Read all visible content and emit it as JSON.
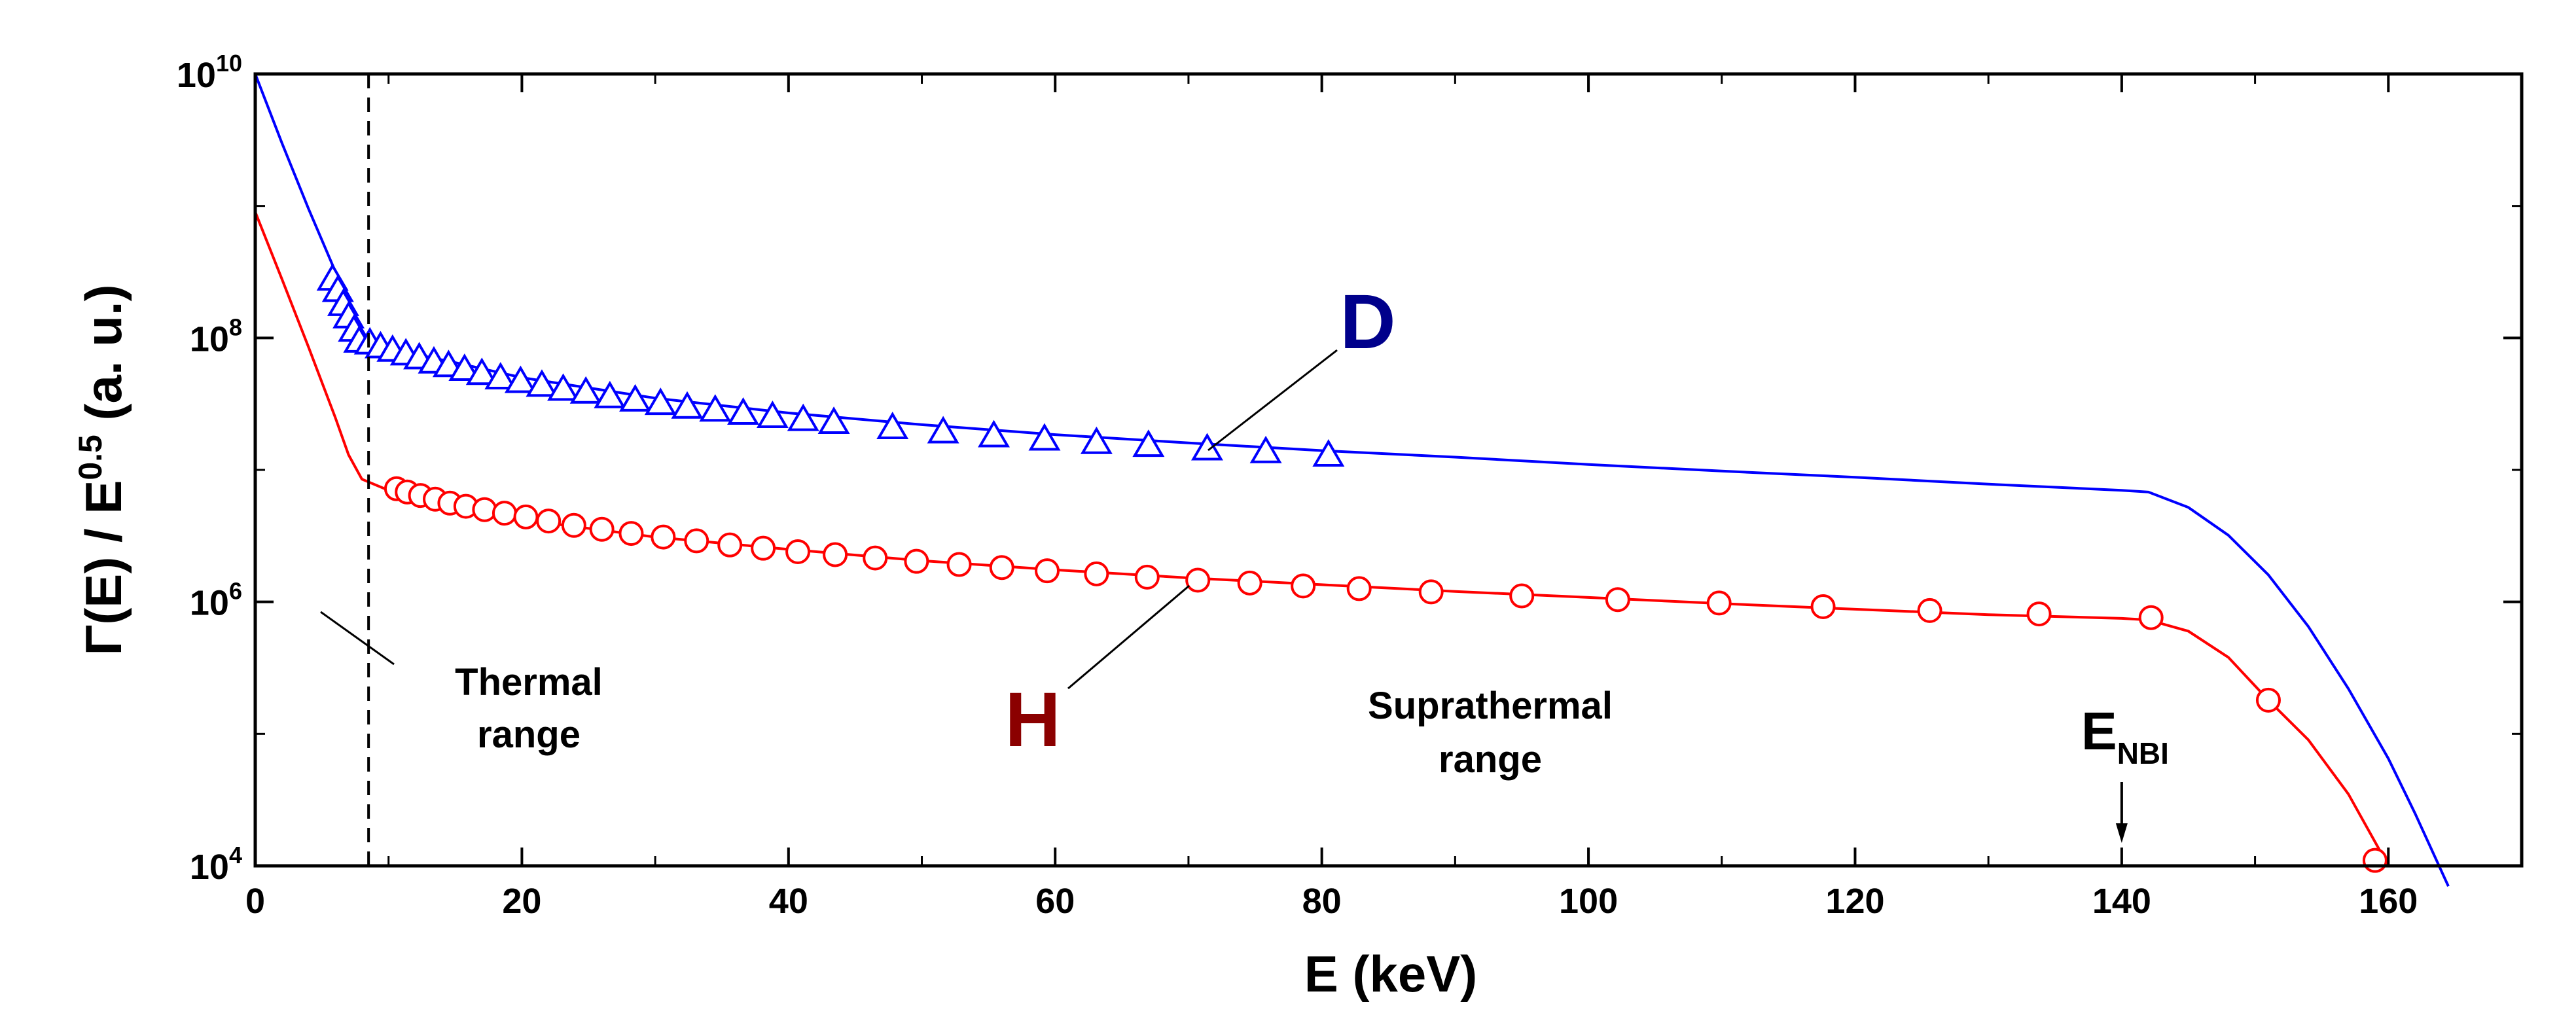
{
  "chart_data": {
    "type": "line",
    "xlabel": "E (keV)",
    "ylabel": {
      "main": "Γ(E) / E",
      "sup": "0.5",
      "tail": " (a. u.)"
    },
    "xlim": [
      0,
      170
    ],
    "ylim": [
      10000,
      10000000000
    ],
    "yscale": "log",
    "grid": false,
    "x_ticks": [
      {
        "value": 0,
        "label": "0"
      },
      {
        "value": 20,
        "label": "20"
      },
      {
        "value": 40,
        "label": "40"
      },
      {
        "value": 60,
        "label": "60"
      },
      {
        "value": 80,
        "label": "80"
      },
      {
        "value": 100,
        "label": "100"
      },
      {
        "value": 120,
        "label": "120"
      },
      {
        "value": 140,
        "label": "140"
      },
      {
        "value": 160,
        "label": "160"
      }
    ],
    "y_ticks": [
      {
        "value": 10000,
        "base": "10",
        "exp": "4"
      },
      {
        "value": 1000000,
        "base": "10",
        "exp": "6"
      },
      {
        "value": 100000000,
        "base": "10",
        "exp": "8"
      },
      {
        "value": 10000000000,
        "base": "10",
        "exp": "10"
      }
    ],
    "series": [
      {
        "name": "D",
        "color": "#0000ff",
        "marker": "triangle",
        "line": [
          [
            0,
            10000000000.0
          ],
          [
            2,
            3000000000.0
          ],
          [
            4,
            950000000.0
          ],
          [
            6,
            320000000.0
          ],
          [
            7,
            170000000.0
          ],
          [
            8.5,
            95000000.0
          ],
          [
            10,
            83000000.0
          ],
          [
            15,
            65000000.0
          ],
          [
            20,
            50000000.0
          ],
          [
            30,
            35000000.0
          ],
          [
            40,
            27000000.0
          ],
          [
            50,
            22000000.0
          ],
          [
            60,
            18500000.0
          ],
          [
            70,
            16000000.0
          ],
          [
            80,
            14000000.0
          ],
          [
            90,
            12500000.0
          ],
          [
            100,
            11000000.0
          ],
          [
            110,
            9800000.0
          ],
          [
            120,
            8800000.0
          ],
          [
            130,
            7800000.0
          ],
          [
            140,
            7000000.0
          ],
          [
            142,
            6800000.0
          ],
          [
            145,
            5200000.0
          ],
          [
            148,
            3200000.0
          ],
          [
            151,
            1600000.0
          ],
          [
            154,
            650000.0
          ],
          [
            157,
            220000.0
          ],
          [
            160,
            65000.0
          ],
          [
            162,
            25000.0
          ],
          [
            164.5,
            7000.0
          ]
        ],
        "points": [
          [
            5.8,
            280000000.0
          ],
          [
            6.2,
            230000000.0
          ],
          [
            6.6,
            180000000.0
          ],
          [
            7.0,
            145000000.0
          ],
          [
            7.4,
            115000000.0
          ],
          [
            7.8,
            95000000.0
          ],
          [
            8.6,
            92000000.0
          ],
          [
            9.4,
            86000000.0
          ],
          [
            10.3,
            81000000.0
          ],
          [
            11.3,
            76000000.0
          ],
          [
            12.3,
            71000000.0
          ],
          [
            13.4,
            66000000.0
          ],
          [
            14.5,
            62000000.0
          ],
          [
            15.7,
            58000000.0
          ],
          [
            17.0,
            54000000.0
          ],
          [
            18.4,
            50000000.0
          ],
          [
            19.9,
            47000000.0
          ],
          [
            21.5,
            44000000.0
          ],
          [
            23.1,
            41000000.0
          ],
          [
            24.8,
            39000000.0
          ],
          [
            26.6,
            36000000.0
          ],
          [
            28.5,
            34000000.0
          ],
          [
            30.4,
            32000000.0
          ],
          [
            32.4,
            30000000.0
          ],
          [
            34.5,
            28500000.0
          ],
          [
            36.6,
            27000000.0
          ],
          [
            38.8,
            25500000.0
          ],
          [
            41.1,
            24200000.0
          ],
          [
            43.4,
            23000000.0
          ],
          [
            47.8,
            21000000.0
          ],
          [
            51.6,
            19500000.0
          ],
          [
            55.4,
            18200000.0
          ],
          [
            59.2,
            17200000.0
          ],
          [
            63.1,
            16200000.0
          ],
          [
            67.0,
            15400000.0
          ],
          [
            71.4,
            14500000.0
          ],
          [
            75.8,
            13800000.0
          ],
          [
            80.5,
            13000000.0
          ]
        ]
      },
      {
        "name": "H",
        "color": "#ff0000",
        "marker": "circle",
        "line": [
          [
            0,
            900000000.0
          ],
          [
            2,
            280000000.0
          ],
          [
            4,
            85000000.0
          ],
          [
            6,
            25000000.0
          ],
          [
            7,
            13000000.0
          ],
          [
            8,
            8500000.0
          ],
          [
            10,
            7000000.0
          ],
          [
            15,
            5200000.0
          ],
          [
            20,
            4200000.0
          ],
          [
            30,
            3100000.0
          ],
          [
            40,
            2500000.0
          ],
          [
            50,
            2050000.0
          ],
          [
            60,
            1750000.0
          ],
          [
            70,
            1520000.0
          ],
          [
            80,
            1350000.0
          ],
          [
            90,
            1200000.0
          ],
          [
            100,
            1080000.0
          ],
          [
            110,
            970000.0
          ],
          [
            120,
            880000.0
          ],
          [
            130,
            800000.0
          ],
          [
            140,
            750000.0
          ],
          [
            142,
            730000.0
          ],
          [
            145,
            600000.0
          ],
          [
            148,
            380000.0
          ],
          [
            151,
            180000.0
          ],
          [
            154,
            90000.0
          ],
          [
            157,
            35000.0
          ],
          [
            160,
            10000.0
          ]
        ],
        "points": [
          [
            10.6,
            7200000.0
          ],
          [
            11.4,
            6800000.0
          ],
          [
            12.4,
            6400000.0
          ],
          [
            13.5,
            6000000.0
          ],
          [
            14.6,
            5600000.0
          ],
          [
            15.8,
            5300000.0
          ],
          [
            17.2,
            5000000.0
          ],
          [
            18.7,
            4700000.0
          ],
          [
            20.3,
            4400000.0
          ],
          [
            22.0,
            4100000.0
          ],
          [
            23.9,
            3800000.0
          ],
          [
            26.0,
            3550000.0
          ],
          [
            28.2,
            3300000.0
          ],
          [
            30.6,
            3100000.0
          ],
          [
            33.1,
            2900000.0
          ],
          [
            35.6,
            2700000.0
          ],
          [
            38.1,
            2550000.0
          ],
          [
            40.7,
            2400000.0
          ],
          [
            43.5,
            2280000.0
          ],
          [
            46.5,
            2150000.0
          ],
          [
            49.6,
            2030000.0
          ],
          [
            52.8,
            1920000.0
          ],
          [
            56.0,
            1820000.0
          ],
          [
            59.4,
            1720000.0
          ],
          [
            63.1,
            1630000.0
          ],
          [
            66.9,
            1540000.0
          ],
          [
            70.7,
            1460000.0
          ],
          [
            74.6,
            1390000.0
          ],
          [
            78.6,
            1320000.0
          ],
          [
            82.8,
            1260000.0
          ],
          [
            88.2,
            1190000.0
          ],
          [
            95.0,
            1110000.0
          ],
          [
            102.2,
            1040000.0
          ],
          [
            109.8,
            980000.0
          ],
          [
            117.6,
            920000.0
          ],
          [
            125.6,
            860000.0
          ],
          [
            133.8,
            810000.0
          ],
          [
            142.2,
            760000.0
          ],
          [
            151.0,
            180000.0
          ],
          [
            159.0,
            11000.0
          ]
        ]
      }
    ],
    "annotations": {
      "thermal": [
        "Thermal",
        "range"
      ],
      "suprathermal": [
        "Suprathermal",
        "range"
      ],
      "enbi": {
        "main": "E",
        "sub": "NBI",
        "x": 140
      },
      "divider_x": 8.5,
      "label_D": "D",
      "label_H": "H",
      "color_D_label": "#00008b",
      "color_H_label": "#8b0000"
    }
  }
}
